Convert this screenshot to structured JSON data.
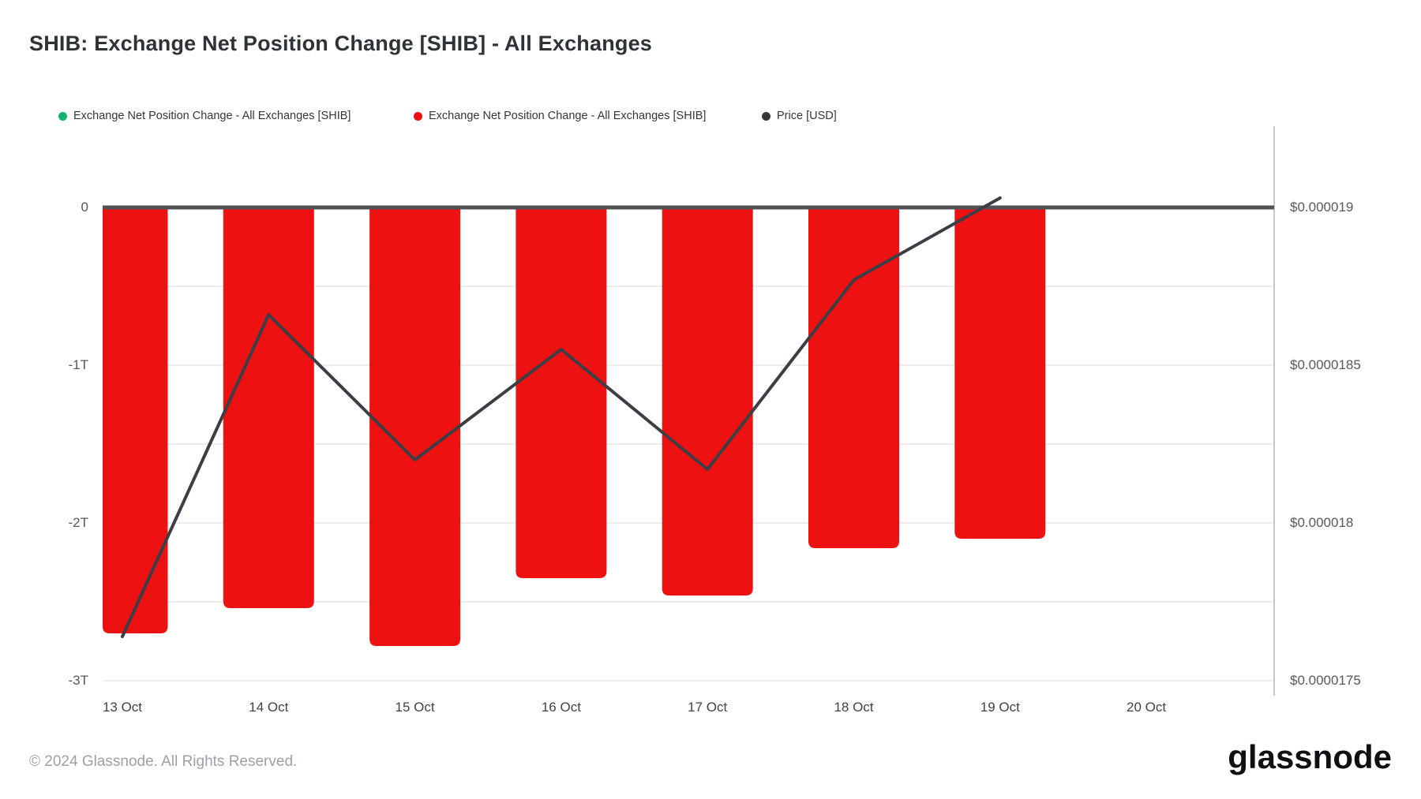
{
  "page": {
    "title": "SHIB: Exchange Net Position Change [SHIB] - All Exchanges",
    "footer_copyright": "© 2024 Glassnode. All Rights Reserved.",
    "brand_logo": "glassnode"
  },
  "legend": {
    "items": [
      {
        "label": "Exchange Net Position Change - All Exchanges [SHIB]",
        "color": "#10b46e"
      },
      {
        "label": "Exchange Net Position Change - All Exchanges [SHIB]",
        "color": "#ee1111"
      },
      {
        "label": "Price [USD]",
        "color": "#36373b"
      }
    ]
  },
  "colors": {
    "bar": "#ee1111",
    "price_line": "#3b3e44",
    "zero_line": "#515156",
    "gridline": "#ededed",
    "right_border": "#b7b7b7"
  },
  "chart_data": {
    "type": "bar",
    "title": "SHIB: Exchange Net Position Change [SHIB] - All Exchanges",
    "categories": [
      "13 Oct",
      "14 Oct",
      "15 Oct",
      "16 Oct",
      "17 Oct",
      "18 Oct",
      "19 Oct"
    ],
    "x_ticks": [
      "13 Oct",
      "14 Oct",
      "15 Oct",
      "16 Oct",
      "17 Oct",
      "18 Oct",
      "19 Oct",
      "20 Oct"
    ],
    "series": [
      {
        "name": "Exchange Net Position Change - All Exchanges [SHIB]",
        "type": "bar",
        "axis": "left",
        "unit": "trillions of SHIB",
        "values": [
          -2.7,
          -2.54,
          -2.78,
          -2.35,
          -2.46,
          -2.16,
          -2.1
        ]
      },
      {
        "name": "Price [USD]",
        "type": "line",
        "axis": "right",
        "unit": "USD",
        "values": [
          1.764e-05,
          1.866e-05,
          1.82e-05,
          1.855e-05,
          1.817e-05,
          1.877e-05,
          1.903e-05
        ]
      }
    ],
    "left_axis": {
      "ticks": [
        "0",
        "-1T",
        "-2T",
        "-3T"
      ],
      "tick_values": [
        0,
        -1,
        -2,
        -3
      ],
      "range_trillions": [
        -3.1,
        0.5
      ]
    },
    "right_axis": {
      "ticks": [
        "$0.000019",
        "$0.0000185",
        "$0.000018",
        "$0.0000175"
      ],
      "tick_values": [
        1.9e-05,
        1.85e-05,
        1.8e-05,
        1.75e-05
      ]
    },
    "grid": "horizontal minor gridlines every 0.5T, none above zero",
    "legend_position": "top"
  }
}
